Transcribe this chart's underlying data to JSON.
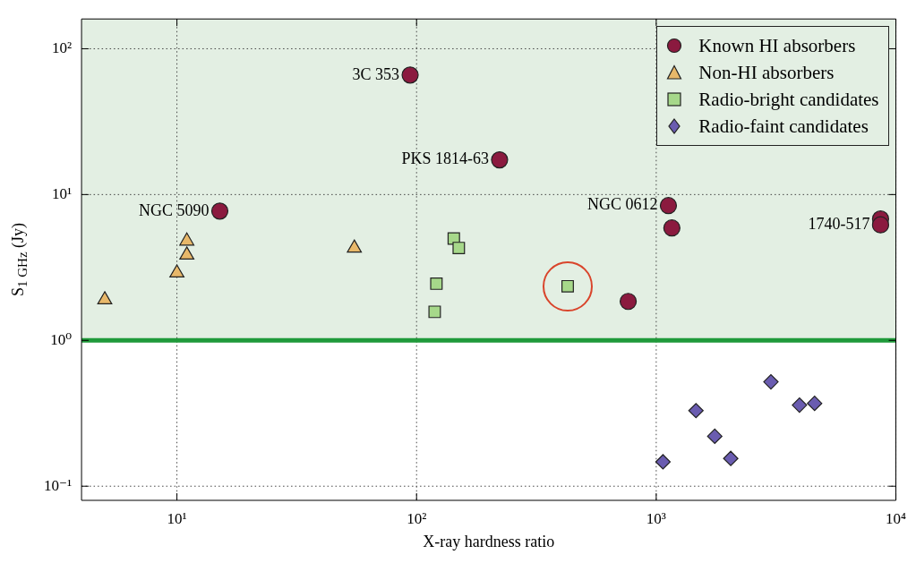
{
  "chart_data": {
    "type": "scatter",
    "xlabel": "X-ray hardness ratio",
    "ylabel": "S$_{1 GHz}$ (Jy)",
    "log": "xy",
    "grid": true,
    "legend": "top right",
    "xlim": [
      4,
      10000
    ],
    "ylim": [
      0.08,
      160
    ],
    "xticks": [
      {
        "value": 10,
        "label": "10¹"
      },
      {
        "value": 100,
        "label": "10²"
      },
      {
        "value": 1000,
        "label": "10³"
      },
      {
        "value": 10000,
        "label": "10⁴"
      }
    ],
    "yticks": [
      {
        "value": 0.1,
        "label": "10⁻¹"
      },
      {
        "value": 1,
        "label": "10⁰"
      },
      {
        "value": 10,
        "label": "10¹"
      },
      {
        "value": 100,
        "label": "10²"
      }
    ],
    "series": [
      {
        "name": "Known HI absorbers",
        "color": "#8b1a3f",
        "marker": "circle",
        "x": [
          94,
          222,
          15.1,
          1124,
          1162,
          764,
          8630,
          8630
        ],
        "values": [
          66,
          17.3,
          7.7,
          8.4,
          5.9,
          1.85,
          6.8,
          6.2
        ]
      },
      {
        "name": "Non-HI absorbers",
        "color": "#e8b86a",
        "marker": "triangle",
        "x": [
          5,
          10,
          11,
          11,
          55
        ],
        "values": [
          1.9,
          2.9,
          3.85,
          4.8,
          4.3
        ]
      },
      {
        "name": "Radio-bright candidates",
        "color": "#a6d88a",
        "marker": "square",
        "x": [
          143,
          150,
          121,
          119,
          427
        ],
        "values": [
          5.0,
          4.3,
          2.45,
          1.57,
          2.35
        ]
      },
      {
        "name": "Radio-faint candidates",
        "color": "#6a5cb0",
        "marker": "diamond",
        "x": [
          1067,
          1465,
          1755,
          2046,
          3010,
          3960,
          4580
        ],
        "values": [
          0.147,
          0.33,
          0.22,
          0.155,
          0.52,
          0.36,
          0.37
        ]
      }
    ],
    "annotations": [
      {
        "text": "3C 353",
        "x": 94,
        "y": 66
      },
      {
        "text": "PKS 1814-63",
        "x": 222,
        "y": 17.3
      },
      {
        "text": "NGC 5090",
        "x": 15.1,
        "y": 7.7
      },
      {
        "text": "NGC 0612",
        "x": 1124,
        "y": 8.4
      },
      {
        "text": "1740-517",
        "x": 8630,
        "y": 6.2
      }
    ],
    "bands": [
      {
        "axis": "y",
        "from": 1,
        "to": 160,
        "color": "#e3efe3"
      }
    ],
    "ref_lines": [
      {
        "axis": "y",
        "value": 1,
        "color": "#1f9a3a"
      }
    ]
  }
}
